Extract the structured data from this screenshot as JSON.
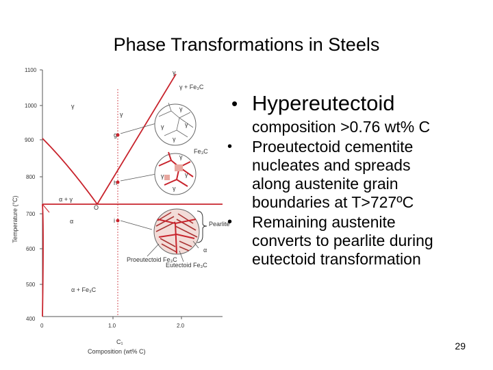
{
  "slide": {
    "title": "Phase Transformations in Steels",
    "page_number": "29",
    "bullets": {
      "main": "Hypereutectoid",
      "main_continuation": "composition >0.76 wt% C",
      "sub": [
        {
          "lines": [
            "Proeutectoid cementite",
            "nucleates and spreads",
            "along austenite grain",
            "boundaries at T>727ºC"
          ]
        },
        {
          "lines": [
            "Remaining austenite",
            "converts to pearlite during",
            "eutectoid transformation"
          ]
        }
      ]
    }
  },
  "diagram": {
    "y_axis_label": "Temperature (°C)",
    "x_axis_label": "Composition (wt% C)",
    "y_ticks": [
      "1100",
      "1000",
      "900",
      "800",
      "700",
      "600",
      "500",
      "400"
    ],
    "x_ticks": [
      "0",
      "1.0",
      "2.0"
    ],
    "composition_marker": "C₁",
    "region_labels": {
      "gamma_top": "γ",
      "gamma_fe3c": "γ + Fe₃C",
      "gamma_region": "γ",
      "gamma_small": "γ",
      "alpha_gamma": "α + γ",
      "alpha_left": "α",
      "alpha_fe3c": "α + Fe₃C",
      "eutectoid_point": "O",
      "fe3c_in_grain": "Fe₃C",
      "pearlite": "Pearlite",
      "alpha_pearlite": "α",
      "proeutectoid": "Proeutectoid Fe₃C",
      "eutectoid": "Eutectoid Fe₃C",
      "point_g": "g",
      "point_h": "h",
      "point_i": "i"
    },
    "grain_labels": {
      "g1": "γ",
      "g2": "γ",
      "g3": "γ",
      "g4": "γ",
      "h1": "γ",
      "h2": "γ",
      "h3": "γ",
      "h4": "γ"
    },
    "colors": {
      "line": "#c8232c",
      "grid": "#999999"
    }
  }
}
